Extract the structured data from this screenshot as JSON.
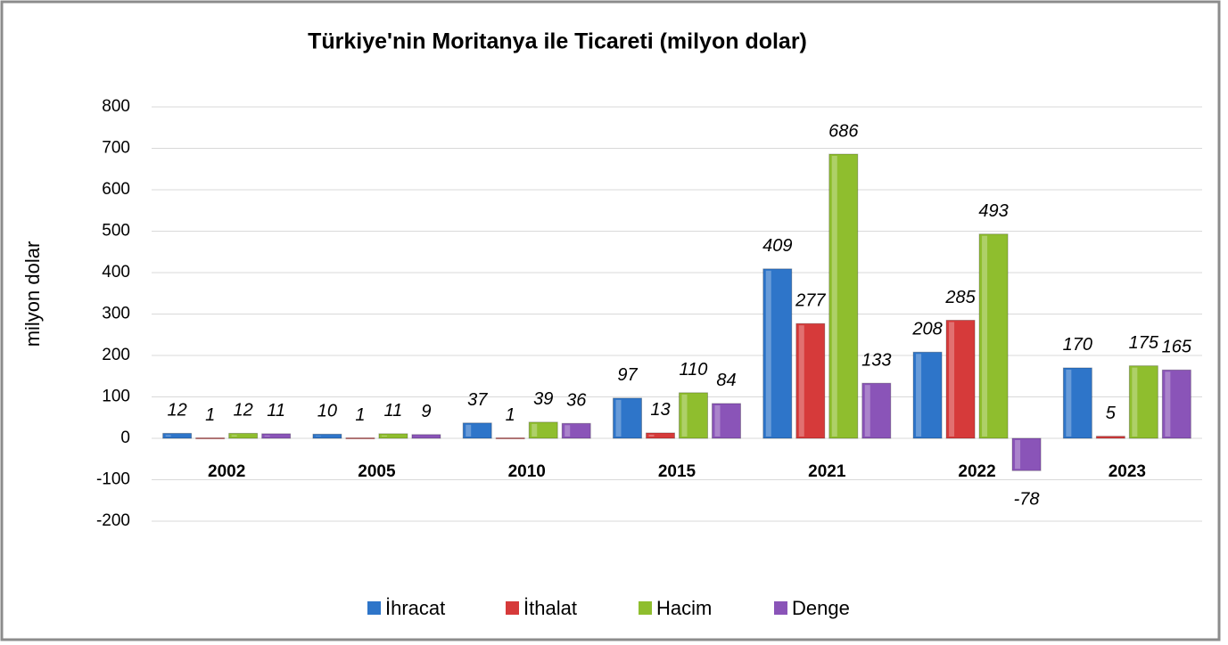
{
  "chart_data": {
    "type": "bar",
    "title": "Türkiye'nin Moritanya ile Ticareti (milyon dolar)",
    "y_label": "milyon dolar",
    "categories": [
      "2002",
      "2005",
      "2010",
      "2015",
      "2021",
      "2022",
      "2023"
    ],
    "series": [
      {
        "name": "İhracat",
        "color": "#2e75c9",
        "values": [
          12,
          10,
          37,
          97,
          409,
          208,
          170
        ]
      },
      {
        "name": "İthalat",
        "color": "#d63a3a",
        "values": [
          1,
          1,
          1,
          13,
          277,
          285,
          5
        ]
      },
      {
        "name": "Hacim",
        "color": "#8fbe2e",
        "values": [
          12,
          11,
          39,
          110,
          686,
          493,
          175
        ]
      },
      {
        "name": "Denge",
        "color": "#8a54b8",
        "values": [
          11,
          9,
          36,
          84,
          133,
          -78,
          165
        ]
      }
    ],
    "ylim": [
      -200,
      800
    ],
    "yticks": [
      -200,
      -100,
      0,
      100,
      200,
      300,
      400,
      500,
      600,
      700,
      800
    ],
    "grid": true,
    "legend": "bottom"
  }
}
